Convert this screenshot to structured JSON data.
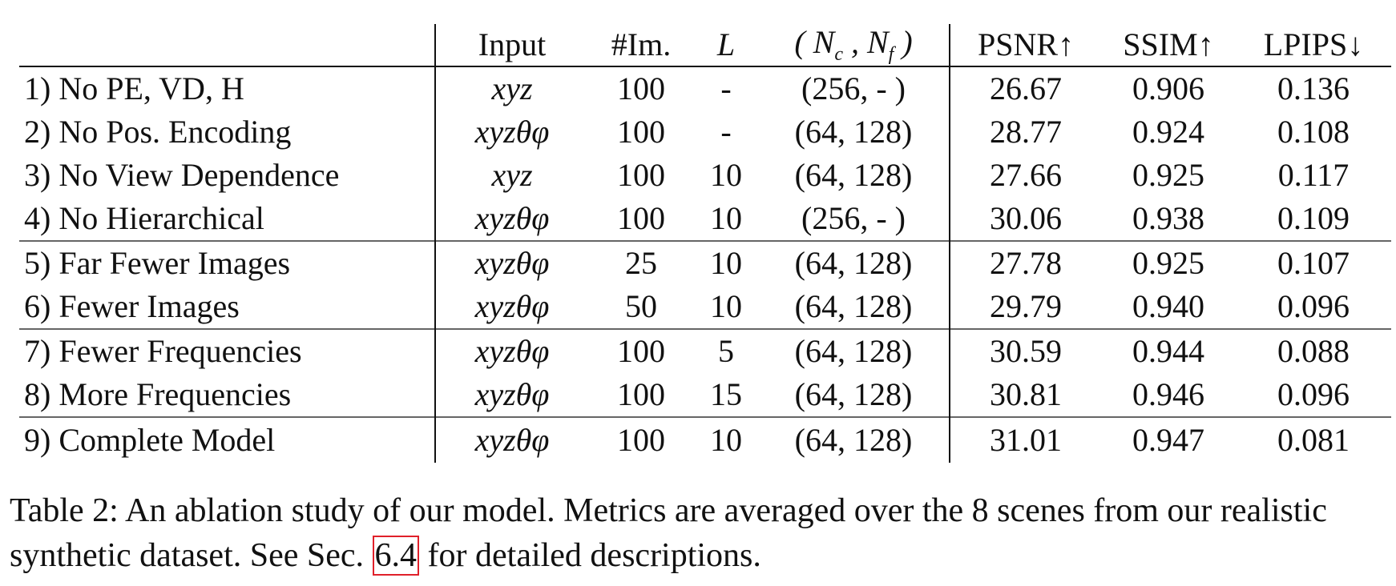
{
  "table": {
    "headers": [
      "",
      "Input",
      "#Im.",
      "L",
      "( Nc , Nf )",
      "PSNR↑",
      "SSIM↑",
      "LPIPS↓"
    ],
    "rows": [
      {
        "label": "1) No PE, VD, H",
        "input": "xyz",
        "images": "100",
        "L": "-",
        "n": "(256,  - )",
        "psnr": "26.67",
        "ssim": "0.906",
        "lpips": "0.136"
      },
      {
        "label": "2) No Pos. Encoding",
        "input": "xyzθφ",
        "images": "100",
        "L": "-",
        "n": "(64, 128)",
        "psnr": "28.77",
        "ssim": "0.924",
        "lpips": "0.108"
      },
      {
        "label": "3) No View Dependence",
        "input": "xyz",
        "images": "100",
        "L": "10",
        "n": "(64, 128)",
        "psnr": "27.66",
        "ssim": "0.925",
        "lpips": "0.117"
      },
      {
        "label": "4) No Hierarchical",
        "input": "xyzθφ",
        "images": "100",
        "L": "10",
        "n": "(256,  - )",
        "psnr": "30.06",
        "ssim": "0.938",
        "lpips": "0.109"
      },
      {
        "label": "5) Far Fewer Images",
        "input": "xyzθφ",
        "images": "25",
        "L": "10",
        "n": "(64, 128)",
        "psnr": "27.78",
        "ssim": "0.925",
        "lpips": "0.107"
      },
      {
        "label": "6) Fewer Images",
        "input": "xyzθφ",
        "images": "50",
        "L": "10",
        "n": "(64, 128)",
        "psnr": "29.79",
        "ssim": "0.940",
        "lpips": "0.096"
      },
      {
        "label": "7) Fewer Frequencies",
        "input": "xyzθφ",
        "images": "100",
        "L": "5",
        "n": "(64, 128)",
        "psnr": "30.59",
        "ssim": "0.944",
        "lpips": "0.088"
      },
      {
        "label": "8) More Frequencies",
        "input": "xyzθφ",
        "images": "100",
        "L": "15",
        "n": "(64, 128)",
        "psnr": "30.81",
        "ssim": "0.946",
        "lpips": "0.096"
      },
      {
        "label": "9) Complete Model",
        "input": "xyzθφ",
        "images": "100",
        "L": "10",
        "n": "(64, 128)",
        "psnr": "31.01",
        "ssim": "0.947",
        "lpips": "0.081"
      }
    ]
  },
  "caption": {
    "text_before": "Table 2: An ablation study of our model. Metrics are averaged over the 8 scenes from our realistic synthetic dataset. See Sec. ",
    "ref": "6.4",
    "text_after": " for detailed descriptions."
  },
  "colors": {
    "ref_box": "#e0202a"
  }
}
